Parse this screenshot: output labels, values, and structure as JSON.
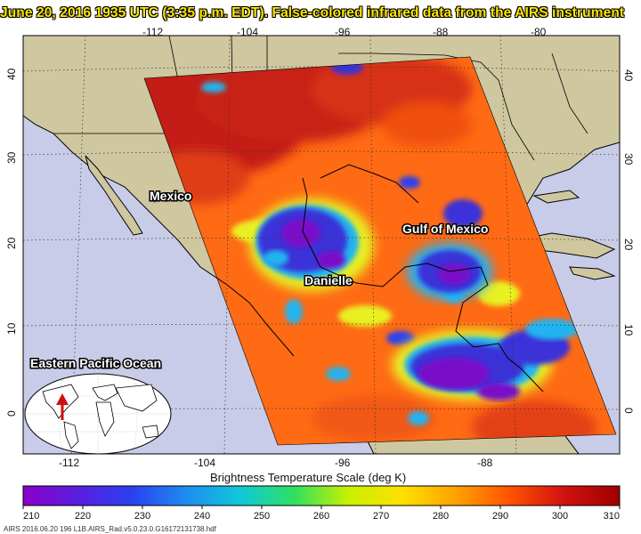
{
  "title": "June 20, 2016 1935 UTC (3:35 p.m. EDT). False-colored infrared data from the AIRS instrument",
  "labels": {
    "mexico": "Mexico",
    "gulf": "Gulf of Mexico",
    "danielle": "Danielle",
    "eastern_pacific": "Eastern Pacific Ocean"
  },
  "axes": {
    "top_lon": [
      "-112",
      "-104",
      "-96",
      "-88",
      "-80"
    ],
    "bottom_lon": [
      "-112",
      "-104",
      "-96",
      "-88"
    ],
    "left_lat": [
      "40",
      "30",
      "20",
      "10",
      "0"
    ],
    "right_lat": [
      "40",
      "30",
      "20",
      "10",
      "0"
    ]
  },
  "scale": {
    "title": "Brightness Temperature Scale (deg K)",
    "ticks": [
      "210",
      "220",
      "230",
      "240",
      "250",
      "260",
      "270",
      "280",
      "290",
      "300",
      "310"
    ],
    "colors": [
      "#8b00c8",
      "#5a1ee0",
      "#2a40f0",
      "#1e8cf0",
      "#10c8d8",
      "#30e060",
      "#c8f000",
      "#ffe000",
      "#ffa000",
      "#ff5000",
      "#d01010",
      "#a00000"
    ]
  },
  "footer": "AIRS 2016.06.20 196 L1B.AIRS_Rad.v5.0.23.0.G16172131738.hdf",
  "colors": {
    "land": "#cec7a0",
    "ocean": "#c8cce8",
    "swath_warm": "#ff6a14",
    "swath_hot": "#c01a1a",
    "cloud_cold": "#3a30d8",
    "cloud_coldest": "#7a10c8",
    "cloud_mid": "#20b4f0",
    "cloud_edge": "#e8f020",
    "border": "#000000"
  },
  "icons": {
    "inset_arrow": "red-arrow-icon",
    "globe": "world-map-inset"
  }
}
